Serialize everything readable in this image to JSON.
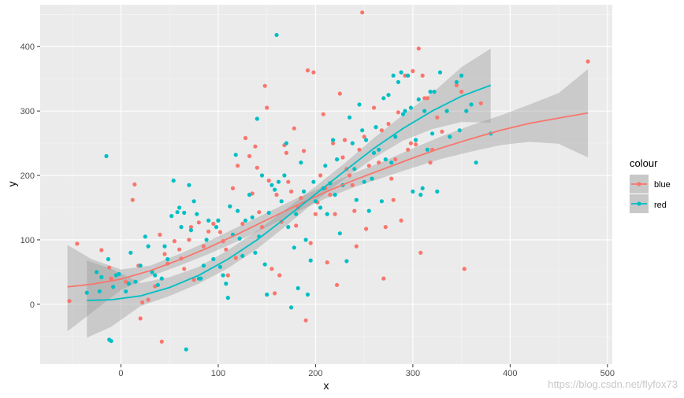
{
  "colors": {
    "blue": "#f8766d",
    "red": "#00bfc4",
    "panel": "#ebebeb",
    "grid_major": "#ffffff",
    "grid_minor": "#f5f5f5",
    "ribbon": "#999999"
  },
  "watermark": "https://blog.csdn.net/flyfox73",
  "chart_data": {
    "type": "scatter",
    "xlabel": "x",
    "ylabel": "y",
    "xlim": [
      -83,
      505
    ],
    "ylim": [
      -93,
      465
    ],
    "xticks": [
      0,
      100,
      200,
      300,
      400,
      500
    ],
    "yticks": [
      0,
      100,
      200,
      300,
      400
    ],
    "grid": true,
    "legend": {
      "title": "colour",
      "position": "right",
      "entries": [
        "blue",
        "red"
      ]
    },
    "smooth": [
      {
        "series": "blue",
        "x": [
          -55,
          -30,
          0,
          30,
          60,
          90,
          120,
          150,
          180,
          210,
          240,
          270,
          300,
          330,
          360,
          390,
          420,
          450,
          480
        ],
        "y": [
          27,
          31,
          39,
          52,
          69,
          88,
          109,
          131,
          153,
          174,
          193,
          210,
          227,
          243,
          257,
          270,
          281,
          289,
          297
        ],
        "lower": [
          -42,
          -13,
          22,
          43,
          60,
          78,
          98,
          120,
          143,
          164,
          182,
          197,
          212,
          226,
          237,
          247,
          252,
          249,
          228
        ],
        "upper": [
          92,
          70,
          54,
          60,
          78,
          98,
          120,
          142,
          164,
          184,
          204,
          222,
          242,
          261,
          278,
          293,
          310,
          328,
          365
        ]
      },
      {
        "series": "red",
        "x": [
          -35,
          -10,
          20,
          50,
          80,
          110,
          140,
          170,
          200,
          230,
          260,
          290,
          320,
          350,
          380
        ],
        "y": [
          6,
          7,
          13,
          26,
          45,
          70,
          100,
          135,
          171,
          207,
          242,
          273,
          300,
          323,
          340
        ],
        "lower": [
          -52,
          -35,
          -3,
          13,
          32,
          56,
          86,
          122,
          160,
          195,
          227,
          254,
          272,
          283,
          282
        ],
        "upper": [
          68,
          55,
          33,
          42,
          58,
          84,
          114,
          148,
          183,
          219,
          258,
          294,
          328,
          368,
          397
        ]
      }
    ],
    "series": [
      {
        "name": "blue",
        "points": [
          [
            -53,
            5
          ],
          [
            -45,
            94
          ],
          [
            -20,
            84
          ],
          [
            -12,
            57
          ],
          [
            -10,
            40
          ],
          [
            5,
            35
          ],
          [
            12,
            162
          ],
          [
            14,
            186
          ],
          [
            18,
            60
          ],
          [
            20,
            -22
          ],
          [
            22,
            3
          ],
          [
            28,
            7
          ],
          [
            35,
            28
          ],
          [
            40,
            108
          ],
          [
            42,
            -58
          ],
          [
            45,
            78
          ],
          [
            48,
            63
          ],
          [
            55,
            98
          ],
          [
            60,
            85
          ],
          [
            62,
            71
          ],
          [
            65,
            55
          ],
          [
            70,
            100
          ],
          [
            72,
            120
          ],
          [
            75,
            38
          ],
          [
            80,
            127
          ],
          [
            85,
            90
          ],
          [
            90,
            113
          ],
          [
            95,
            125
          ],
          [
            100,
            130
          ],
          [
            102,
            112
          ],
          [
            105,
            98
          ],
          [
            108,
            85
          ],
          [
            110,
            45
          ],
          [
            112,
            152
          ],
          [
            115,
            180
          ],
          [
            118,
            72
          ],
          [
            120,
            215
          ],
          [
            125,
            125
          ],
          [
            128,
            258
          ],
          [
            132,
            230
          ],
          [
            135,
            172
          ],
          [
            138,
            245
          ],
          [
            140,
            212
          ],
          [
            142,
            143
          ],
          [
            145,
            120
          ],
          [
            148,
            339
          ],
          [
            150,
            305
          ],
          [
            152,
            192
          ],
          [
            155,
            55
          ],
          [
            158,
            17
          ],
          [
            160,
            170
          ],
          [
            163,
            45
          ],
          [
            165,
            128
          ],
          [
            168,
            247
          ],
          [
            170,
            235
          ],
          [
            172,
            190
          ],
          [
            175,
            175
          ],
          [
            178,
            273
          ],
          [
            180,
            122
          ],
          [
            182,
            150
          ],
          [
            185,
            165
          ],
          [
            188,
            238
          ],
          [
            190,
            -25
          ],
          [
            192,
            363
          ],
          [
            195,
            95
          ],
          [
            198,
            360
          ],
          [
            200,
            140
          ],
          [
            202,
            158
          ],
          [
            205,
            200
          ],
          [
            208,
            295
          ],
          [
            210,
            180
          ],
          [
            212,
            65
          ],
          [
            215,
            170
          ],
          [
            218,
            250
          ],
          [
            220,
            140
          ],
          [
            222,
            30
          ],
          [
            225,
            327
          ],
          [
            228,
            228
          ],
          [
            230,
            255
          ],
          [
            232,
            210
          ],
          [
            235,
            200
          ],
          [
            238,
            185
          ],
          [
            240,
            145
          ],
          [
            242,
            90
          ],
          [
            245,
            240
          ],
          [
            248,
            453
          ],
          [
            250,
            260
          ],
          [
            252,
            117
          ],
          [
            255,
            215
          ],
          [
            260,
            305
          ],
          [
            265,
            220
          ],
          [
            268,
            270
          ],
          [
            270,
            40
          ],
          [
            272,
            120
          ],
          [
            275,
            280
          ],
          [
            278,
            195
          ],
          [
            280,
            162
          ],
          [
            282,
            225
          ],
          [
            285,
            298
          ],
          [
            288,
            130
          ],
          [
            292,
            355
          ],
          [
            295,
            240
          ],
          [
            298,
            250
          ],
          [
            300,
            362
          ],
          [
            303,
            248
          ],
          [
            306,
            397
          ],
          [
            308,
            80
          ],
          [
            310,
            355
          ],
          [
            312,
            320
          ],
          [
            315,
            320
          ],
          [
            318,
            220
          ],
          [
            320,
            240
          ],
          [
            325,
            290
          ],
          [
            330,
            268
          ],
          [
            345,
            340
          ],
          [
            350,
            330
          ],
          [
            353,
            55
          ],
          [
            370,
            312
          ],
          [
            480,
            377
          ]
        ]
      },
      {
        "name": "red",
        "points": [
          [
            -35,
            18
          ],
          [
            -25,
            50
          ],
          [
            -22,
            20
          ],
          [
            -20,
            42
          ],
          [
            -15,
            230
          ],
          [
            -13,
            70
          ],
          [
            -12,
            -55
          ],
          [
            -10,
            -57
          ],
          [
            -8,
            27
          ],
          [
            -5,
            45
          ],
          [
            -2,
            47
          ],
          [
            5,
            20
          ],
          [
            8,
            32
          ],
          [
            10,
            80
          ],
          [
            15,
            35
          ],
          [
            20,
            60
          ],
          [
            25,
            105
          ],
          [
            28,
            90
          ],
          [
            32,
            50
          ],
          [
            35,
            45
          ],
          [
            38,
            30
          ],
          [
            42,
            40
          ],
          [
            45,
            90
          ],
          [
            48,
            70
          ],
          [
            52,
            137
          ],
          [
            54,
            192
          ],
          [
            58,
            143
          ],
          [
            60,
            150
          ],
          [
            62,
            120
          ],
          [
            65,
            142
          ],
          [
            67,
            -70
          ],
          [
            70,
            185
          ],
          [
            72,
            115
          ],
          [
            75,
            160
          ],
          [
            78,
            140
          ],
          [
            80,
            40
          ],
          [
            82,
            40
          ],
          [
            85,
            60
          ],
          [
            88,
            100
          ],
          [
            90,
            130
          ],
          [
            95,
            70
          ],
          [
            98,
            120
          ],
          [
            100,
            130
          ],
          [
            102,
            58
          ],
          [
            105,
            45
          ],
          [
            108,
            32
          ],
          [
            110,
            10
          ],
          [
            112,
            152
          ],
          [
            115,
            108
          ],
          [
            118,
            232
          ],
          [
            120,
            145
          ],
          [
            122,
            102
          ],
          [
            125,
            75
          ],
          [
            128,
            130
          ],
          [
            132,
            170
          ],
          [
            135,
            135
          ],
          [
            138,
            80
          ],
          [
            140,
            288
          ],
          [
            142,
            105
          ],
          [
            145,
            200
          ],
          [
            148,
            62
          ],
          [
            150,
            15
          ],
          [
            152,
            142
          ],
          [
            155,
            185
          ],
          [
            158,
            178
          ],
          [
            160,
            418
          ],
          [
            162,
            190
          ],
          [
            165,
            160
          ],
          [
            168,
            200
          ],
          [
            170,
            250
          ],
          [
            172,
            120
          ],
          [
            175,
            -5
          ],
          [
            178,
            88
          ],
          [
            180,
            140
          ],
          [
            182,
            25
          ],
          [
            185,
            220
          ],
          [
            188,
            175
          ],
          [
            190,
            100
          ],
          [
            192,
            15
          ],
          [
            195,
            68
          ],
          [
            198,
            190
          ],
          [
            200,
            160
          ],
          [
            205,
            150
          ],
          [
            208,
            180
          ],
          [
            210,
            215
          ],
          [
            212,
            140
          ],
          [
            215,
            188
          ],
          [
            218,
            255
          ],
          [
            220,
            170
          ],
          [
            222,
            225
          ],
          [
            225,
            110
          ],
          [
            228,
            185
          ],
          [
            232,
            67
          ],
          [
            235,
            290
          ],
          [
            238,
            250
          ],
          [
            240,
            210
          ],
          [
            242,
            162
          ],
          [
            245,
            310
          ],
          [
            248,
            270
          ],
          [
            250,
            190
          ],
          [
            252,
            255
          ],
          [
            255,
            145
          ],
          [
            258,
            195
          ],
          [
            260,
            235
          ],
          [
            262,
            275
          ],
          [
            265,
            240
          ],
          [
            268,
            160
          ],
          [
            270,
            320
          ],
          [
            272,
            225
          ],
          [
            275,
            325
          ],
          [
            278,
            220
          ],
          [
            280,
            355
          ],
          [
            282,
            260
          ],
          [
            285,
            345
          ],
          [
            288,
            360
          ],
          [
            290,
            295
          ],
          [
            292,
            300
          ],
          [
            295,
            355
          ],
          [
            298,
            305
          ],
          [
            300,
            175
          ],
          [
            303,
            255
          ],
          [
            306,
            318
          ],
          [
            308,
            170
          ],
          [
            310,
            180
          ],
          [
            312,
            300
          ],
          [
            315,
            240
          ],
          [
            318,
            330
          ],
          [
            320,
            265
          ],
          [
            322,
            330
          ],
          [
            325,
            175
          ],
          [
            328,
            360
          ],
          [
            335,
            300
          ],
          [
            338,
            260
          ],
          [
            345,
            345
          ],
          [
            348,
            270
          ],
          [
            350,
            355
          ],
          [
            355,
            300
          ],
          [
            360,
            310
          ],
          [
            365,
            220
          ],
          [
            380,
            265
          ]
        ]
      }
    ]
  }
}
